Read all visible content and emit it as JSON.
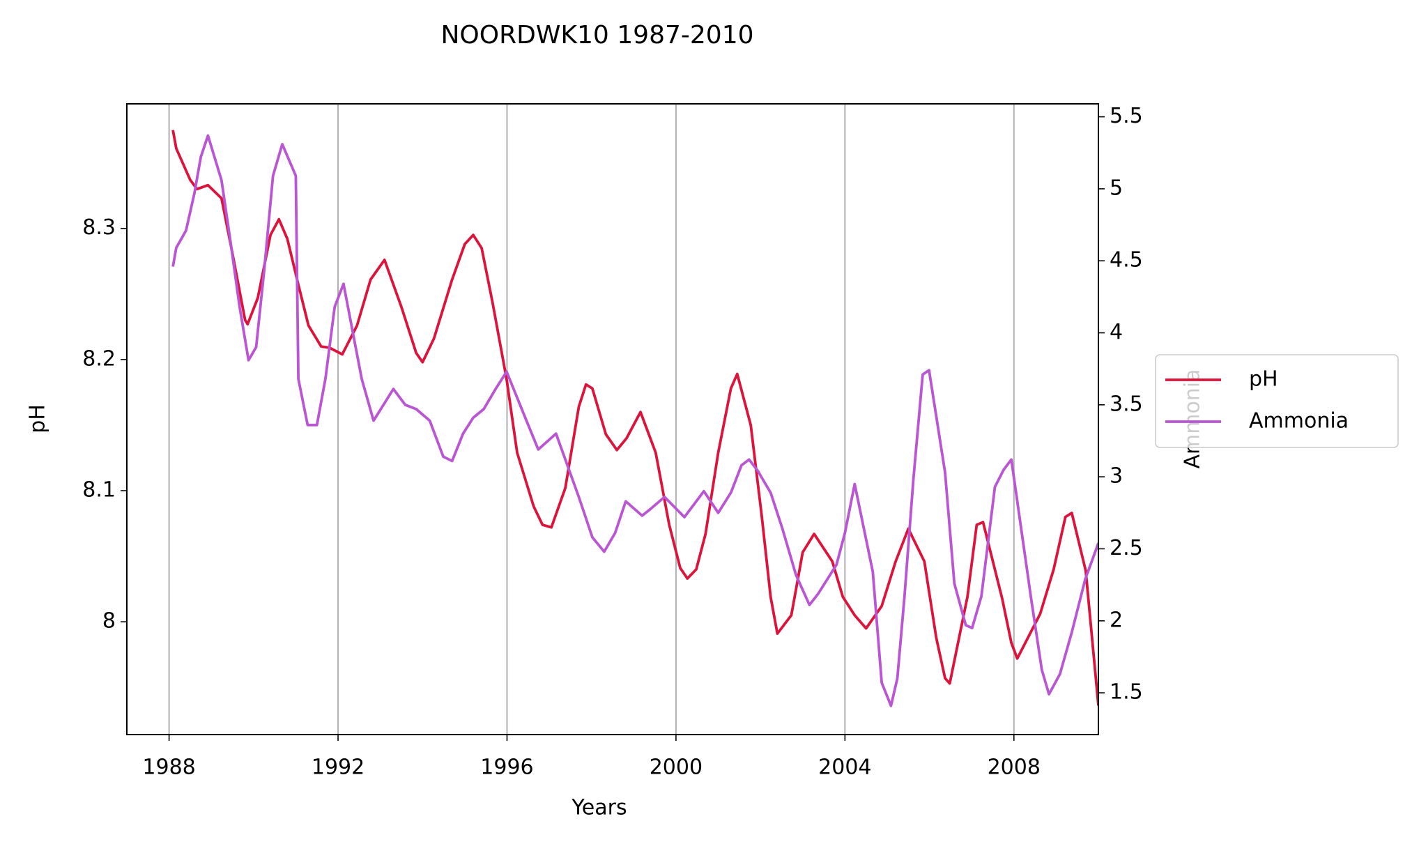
{
  "chart_data": {
    "type": "line",
    "title": "NOORDWK10 1987-2010",
    "x_label": "Years",
    "y_label": "pH",
    "y2_label": "Ammonia",
    "xlim": [
      1987,
      2010
    ],
    "xticks": [
      1988,
      1992,
      1996,
      2000,
      2004,
      2008
    ],
    "ylim": [
      7.914,
      8.395
    ],
    "yticks": [
      8.0,
      8.1,
      8.2,
      8.3
    ],
    "y2lim": [
      1.21,
      5.59
    ],
    "y2ticks": [
      1.5,
      2.0,
      2.5,
      3.0,
      3.5,
      4.0,
      4.5,
      5.0,
      5.5
    ],
    "grid": "x",
    "legend": "right",
    "series": [
      {
        "name": "pH",
        "color": "#dc143c",
        "x": [
          1988.09,
          1988.17,
          1988.5,
          1988.66,
          1988.92,
          1989.24,
          1989.5,
          1989.8,
          1989.86,
          1990.1,
          1990.4,
          1990.6,
          1990.8,
          1991.06,
          1991.3,
          1991.6,
          1991.8,
          1992.1,
          1992.45,
          1992.77,
          1993.1,
          1993.5,
          1993.85,
          1994.0,
          1994.27,
          1994.7,
          1995.0,
          1995.2,
          1995.4,
          1995.66,
          1995.99,
          1996.24,
          1996.63,
          1996.84,
          1997.05,
          1997.38,
          1997.7,
          1997.87,
          1998.02,
          1998.34,
          1998.6,
          1998.83,
          1999.16,
          1999.52,
          1999.84,
          2000.1,
          2000.27,
          2000.48,
          2000.7,
          2001.0,
          2001.3,
          2001.45,
          2001.77,
          2002.03,
          2002.24,
          2002.4,
          2002.73,
          2003.0,
          2003.27,
          2003.7,
          2003.95,
          2004.23,
          2004.5,
          2004.87,
          2005.2,
          2005.5,
          2005.88,
          2006.16,
          2006.37,
          2006.48,
          2006.9,
          2007.12,
          2007.27,
          2007.72,
          2007.94,
          2008.08,
          2008.62,
          2008.94,
          2009.22,
          2009.37,
          2009.7,
          2010.0
        ],
        "values": [
          8.375,
          8.361,
          8.337,
          8.33,
          8.333,
          8.323,
          8.281,
          8.23,
          8.227,
          8.247,
          8.295,
          8.307,
          8.292,
          8.257,
          8.226,
          8.21,
          8.209,
          8.204,
          8.226,
          8.261,
          8.276,
          8.24,
          8.205,
          8.198,
          8.216,
          8.261,
          8.288,
          8.295,
          8.285,
          8.243,
          8.185,
          8.129,
          8.088,
          8.074,
          8.072,
          8.102,
          8.164,
          8.181,
          8.178,
          8.143,
          8.131,
          8.14,
          8.16,
          8.129,
          8.074,
          8.041,
          8.033,
          8.04,
          8.067,
          8.129,
          8.178,
          8.189,
          8.15,
          8.081,
          8.019,
          7.991,
          8.005,
          8.053,
          8.067,
          8.046,
          8.019,
          8.005,
          7.995,
          8.012,
          8.046,
          8.071,
          8.046,
          7.988,
          7.957,
          7.953,
          8.019,
          8.074,
          8.076,
          8.018,
          7.984,
          7.972,
          8.006,
          8.04,
          8.08,
          8.083,
          8.039,
          7.936
        ]
      },
      {
        "name": "Ammonia",
        "color": "#ba55d3",
        "axis": "y2",
        "x": [
          1988.09,
          1988.17,
          1988.4,
          1988.6,
          1988.75,
          1988.92,
          1989.24,
          1989.46,
          1989.67,
          1989.88,
          1990.06,
          1990.25,
          1990.46,
          1990.68,
          1991.0,
          1991.06,
          1991.28,
          1991.5,
          1991.7,
          1991.92,
          1992.13,
          1992.56,
          1992.84,
          1993.31,
          1993.59,
          1993.85,
          1994.17,
          1994.49,
          1994.7,
          1994.96,
          1995.2,
          1995.45,
          1995.73,
          1995.99,
          1996.46,
          1996.74,
          1997.16,
          1997.7,
          1998.02,
          1998.3,
          1998.56,
          1998.81,
          1999.2,
          1999.41,
          1999.73,
          2000.2,
          2000.66,
          2001.0,
          2001.3,
          2001.55,
          2001.73,
          2001.94,
          2002.24,
          2002.52,
          2002.84,
          2003.16,
          2003.37,
          2003.8,
          2004.0,
          2004.23,
          2004.66,
          2004.87,
          2005.09,
          2005.24,
          2005.41,
          2005.62,
          2005.84,
          2005.99,
          2006.37,
          2006.59,
          2006.86,
          2007.01,
          2007.23,
          2007.55,
          2007.76,
          2007.94,
          2008.4,
          2008.66,
          2008.83,
          2009.09,
          2009.37,
          2009.69,
          2010.0
        ],
        "values": [
          4.46,
          4.59,
          4.71,
          4.97,
          5.22,
          5.37,
          5.06,
          4.62,
          4.18,
          3.81,
          3.9,
          4.43,
          5.09,
          5.31,
          5.09,
          3.68,
          3.36,
          3.36,
          3.68,
          4.18,
          4.34,
          3.68,
          3.39,
          3.61,
          3.5,
          3.47,
          3.39,
          3.14,
          3.11,
          3.3,
          3.41,
          3.47,
          3.61,
          3.73,
          3.39,
          3.19,
          3.3,
          2.86,
          2.58,
          2.48,
          2.61,
          2.83,
          2.73,
          2.78,
          2.86,
          2.72,
          2.9,
          2.75,
          2.89,
          3.08,
          3.12,
          3.04,
          2.89,
          2.64,
          2.32,
          2.11,
          2.19,
          2.39,
          2.61,
          2.95,
          2.34,
          1.57,
          1.41,
          1.6,
          2.17,
          2.98,
          3.71,
          3.74,
          3.03,
          2.26,
          1.97,
          1.95,
          2.17,
          2.93,
          3.05,
          3.12,
          2.17,
          1.66,
          1.49,
          1.63,
          1.92,
          2.29,
          2.54
        ]
      }
    ]
  }
}
